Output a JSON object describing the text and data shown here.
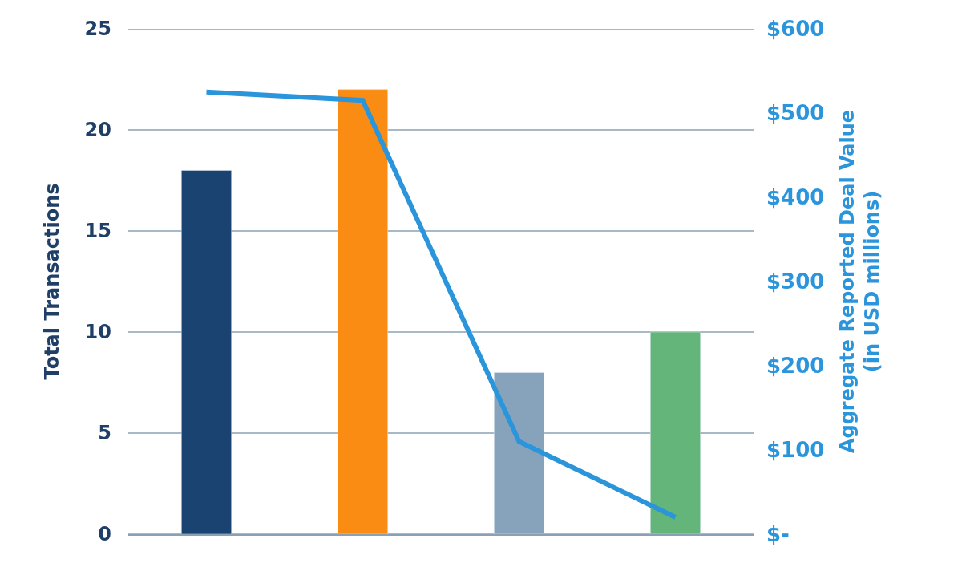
{
  "chart_data": {
    "type": "bar",
    "categories": [
      null,
      null,
      null,
      null
    ],
    "ylabel": "Total Transactions",
    "y2label": "Aggregate Reported Deal Value\n(in USD millions)",
    "series": [
      {
        "colors": [
          "#1b4372",
          "#fb8c13",
          "#87a3bb",
          "#63b57a"
        ],
        "values": [
          18,
          22,
          8,
          10
        ]
      },
      {
        "type": "line",
        "axis": "y2",
        "color": "#2b95dc",
        "values": [
          525,
          515,
          110,
          20
        ]
      }
    ],
    "ylim": [
      0,
      25
    ],
    "yticks": [
      0,
      5,
      10,
      15,
      20,
      25
    ],
    "y2lim": [
      0,
      600
    ],
    "y2ticks": [
      {
        "value": 0,
        "label": "$-"
      },
      {
        "value": 100,
        "label": "$100"
      },
      {
        "value": 200,
        "label": "$200"
      },
      {
        "value": 300,
        "label": "$300"
      },
      {
        "value": 400,
        "label": "$400"
      },
      {
        "value": 500,
        "label": "$500"
      },
      {
        "value": 600,
        "label": "$600"
      }
    ],
    "grid": "y"
  }
}
